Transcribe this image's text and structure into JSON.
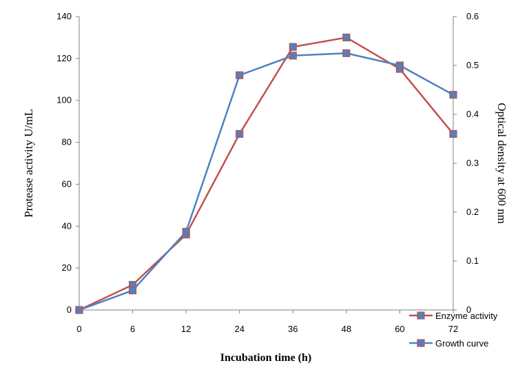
{
  "chart_data": {
    "type": "line",
    "xlabel": "Incubation time (h)",
    "ylabel_left": "Protease activity U/mL",
    "ylabel_right": "Optical density at 600 nm",
    "categories": [
      "0",
      "6",
      "12",
      "24",
      "36",
      "48",
      "60",
      "72"
    ],
    "y_left_range": [
      0,
      140
    ],
    "y_left_ticks": [
      "0",
      "20",
      "40",
      "60",
      "80",
      "100",
      "120",
      "140"
    ],
    "y_right_range": [
      0,
      0.6
    ],
    "y_right_ticks": [
      "0",
      "0.1",
      "0.2",
      "0.3",
      "0.4",
      "0.5",
      "0.6"
    ],
    "grid": false,
    "legend_position": "bottom-right",
    "series": [
      {
        "name": "Enzyme activity",
        "axis": "left",
        "color": "#c0504d",
        "values": [
          0,
          12,
          36,
          84,
          125.5,
          130,
          115,
          84
        ]
      },
      {
        "name": "Growth curve",
        "axis": "right",
        "color": "#4f81bd",
        "values": [
          0,
          0.04,
          0.16,
          0.48,
          0.52,
          0.525,
          0.5,
          0.44
        ]
      }
    ],
    "marker_color": "#4f81bd"
  }
}
